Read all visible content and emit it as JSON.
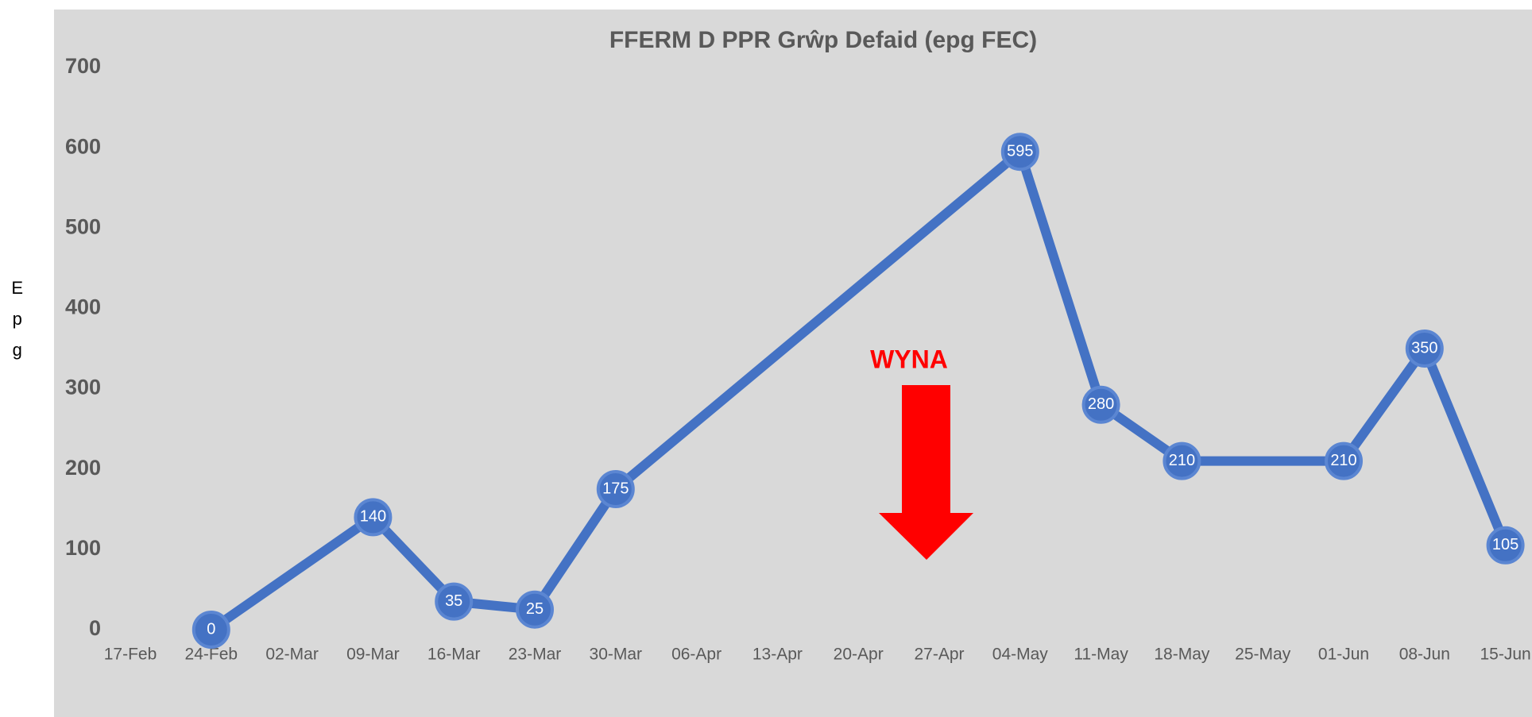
{
  "chart_data": {
    "type": "line",
    "title": "FFERM D PPR Grŵp Defaid (epg FEC)",
    "ylabel": "Epg",
    "categories": [
      "17-Feb",
      "24-Feb",
      "02-Mar",
      "09-Mar",
      "16-Mar",
      "23-Mar",
      "30-Mar",
      "06-Apr",
      "13-Apr",
      "20-Apr",
      "27-Apr",
      "04-May",
      "11-May",
      "18-May",
      "25-May",
      "01-Jun",
      "08-Jun",
      "15-Jun"
    ],
    "series": [
      {
        "name": "epg",
        "color": "#4472c4",
        "x": [
          "24-Feb",
          "09-Mar",
          "16-Mar",
          "23-Mar",
          "30-Mar",
          "04-May",
          "11-May",
          "18-May",
          "01-Jun",
          "08-Jun",
          "15-Jun"
        ],
        "values": [
          0,
          140,
          35,
          25,
          175,
          595,
          280,
          210,
          210,
          350,
          105
        ]
      }
    ],
    "ylim": [
      0,
      700
    ],
    "yticks": [
      0,
      100,
      200,
      300,
      400,
      500,
      600,
      700
    ],
    "annotation": "WYNA",
    "annotation_color": "#ff0000"
  }
}
